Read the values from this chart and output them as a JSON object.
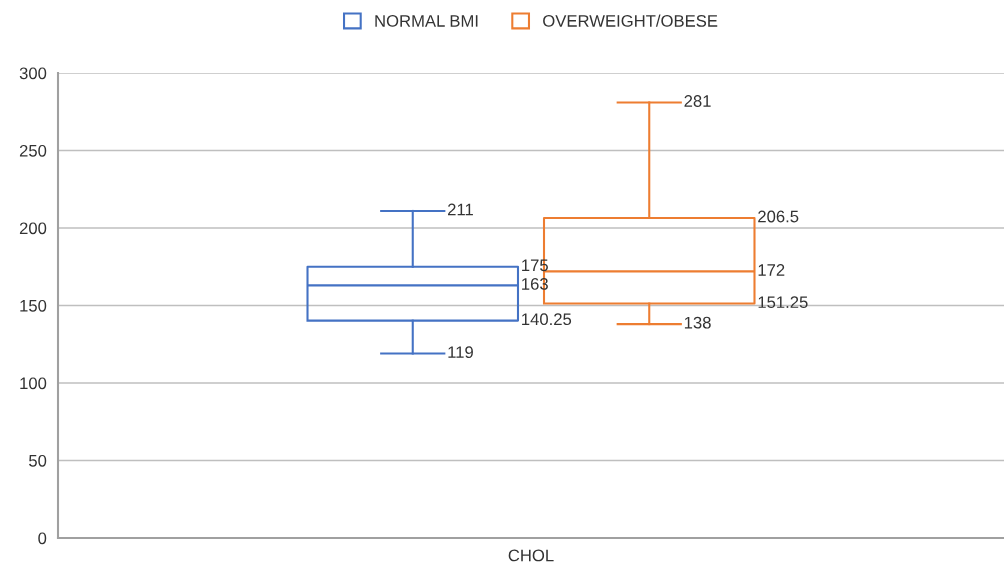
{
  "chart_data": {
    "type": "box",
    "categories": [
      "CHOL"
    ],
    "series": [
      {
        "name": "NORMAL BMI",
        "color": "#4472c4",
        "boxes": [
          {
            "low": 119,
            "q1": 140.25,
            "median": 163,
            "q3": 175,
            "high": 211
          }
        ],
        "value_labels": [
          [
            "119",
            "140.25",
            "163",
            "175",
            "211"
          ]
        ]
      },
      {
        "name": "OVERWEIGHT/OBESE",
        "color": "#ed7d31",
        "boxes": [
          {
            "low": 138,
            "q1": 151.25,
            "median": 172,
            "q3": 206.5,
            "high": 281
          }
        ],
        "value_labels": [
          [
            "138",
            "151.25",
            "172",
            "206.5",
            "281"
          ]
        ]
      }
    ],
    "ylim": [
      0,
      300
    ],
    "yticks": [
      0,
      50,
      100,
      150,
      200,
      250,
      300
    ],
    "grid": "y",
    "legend": "top"
  }
}
